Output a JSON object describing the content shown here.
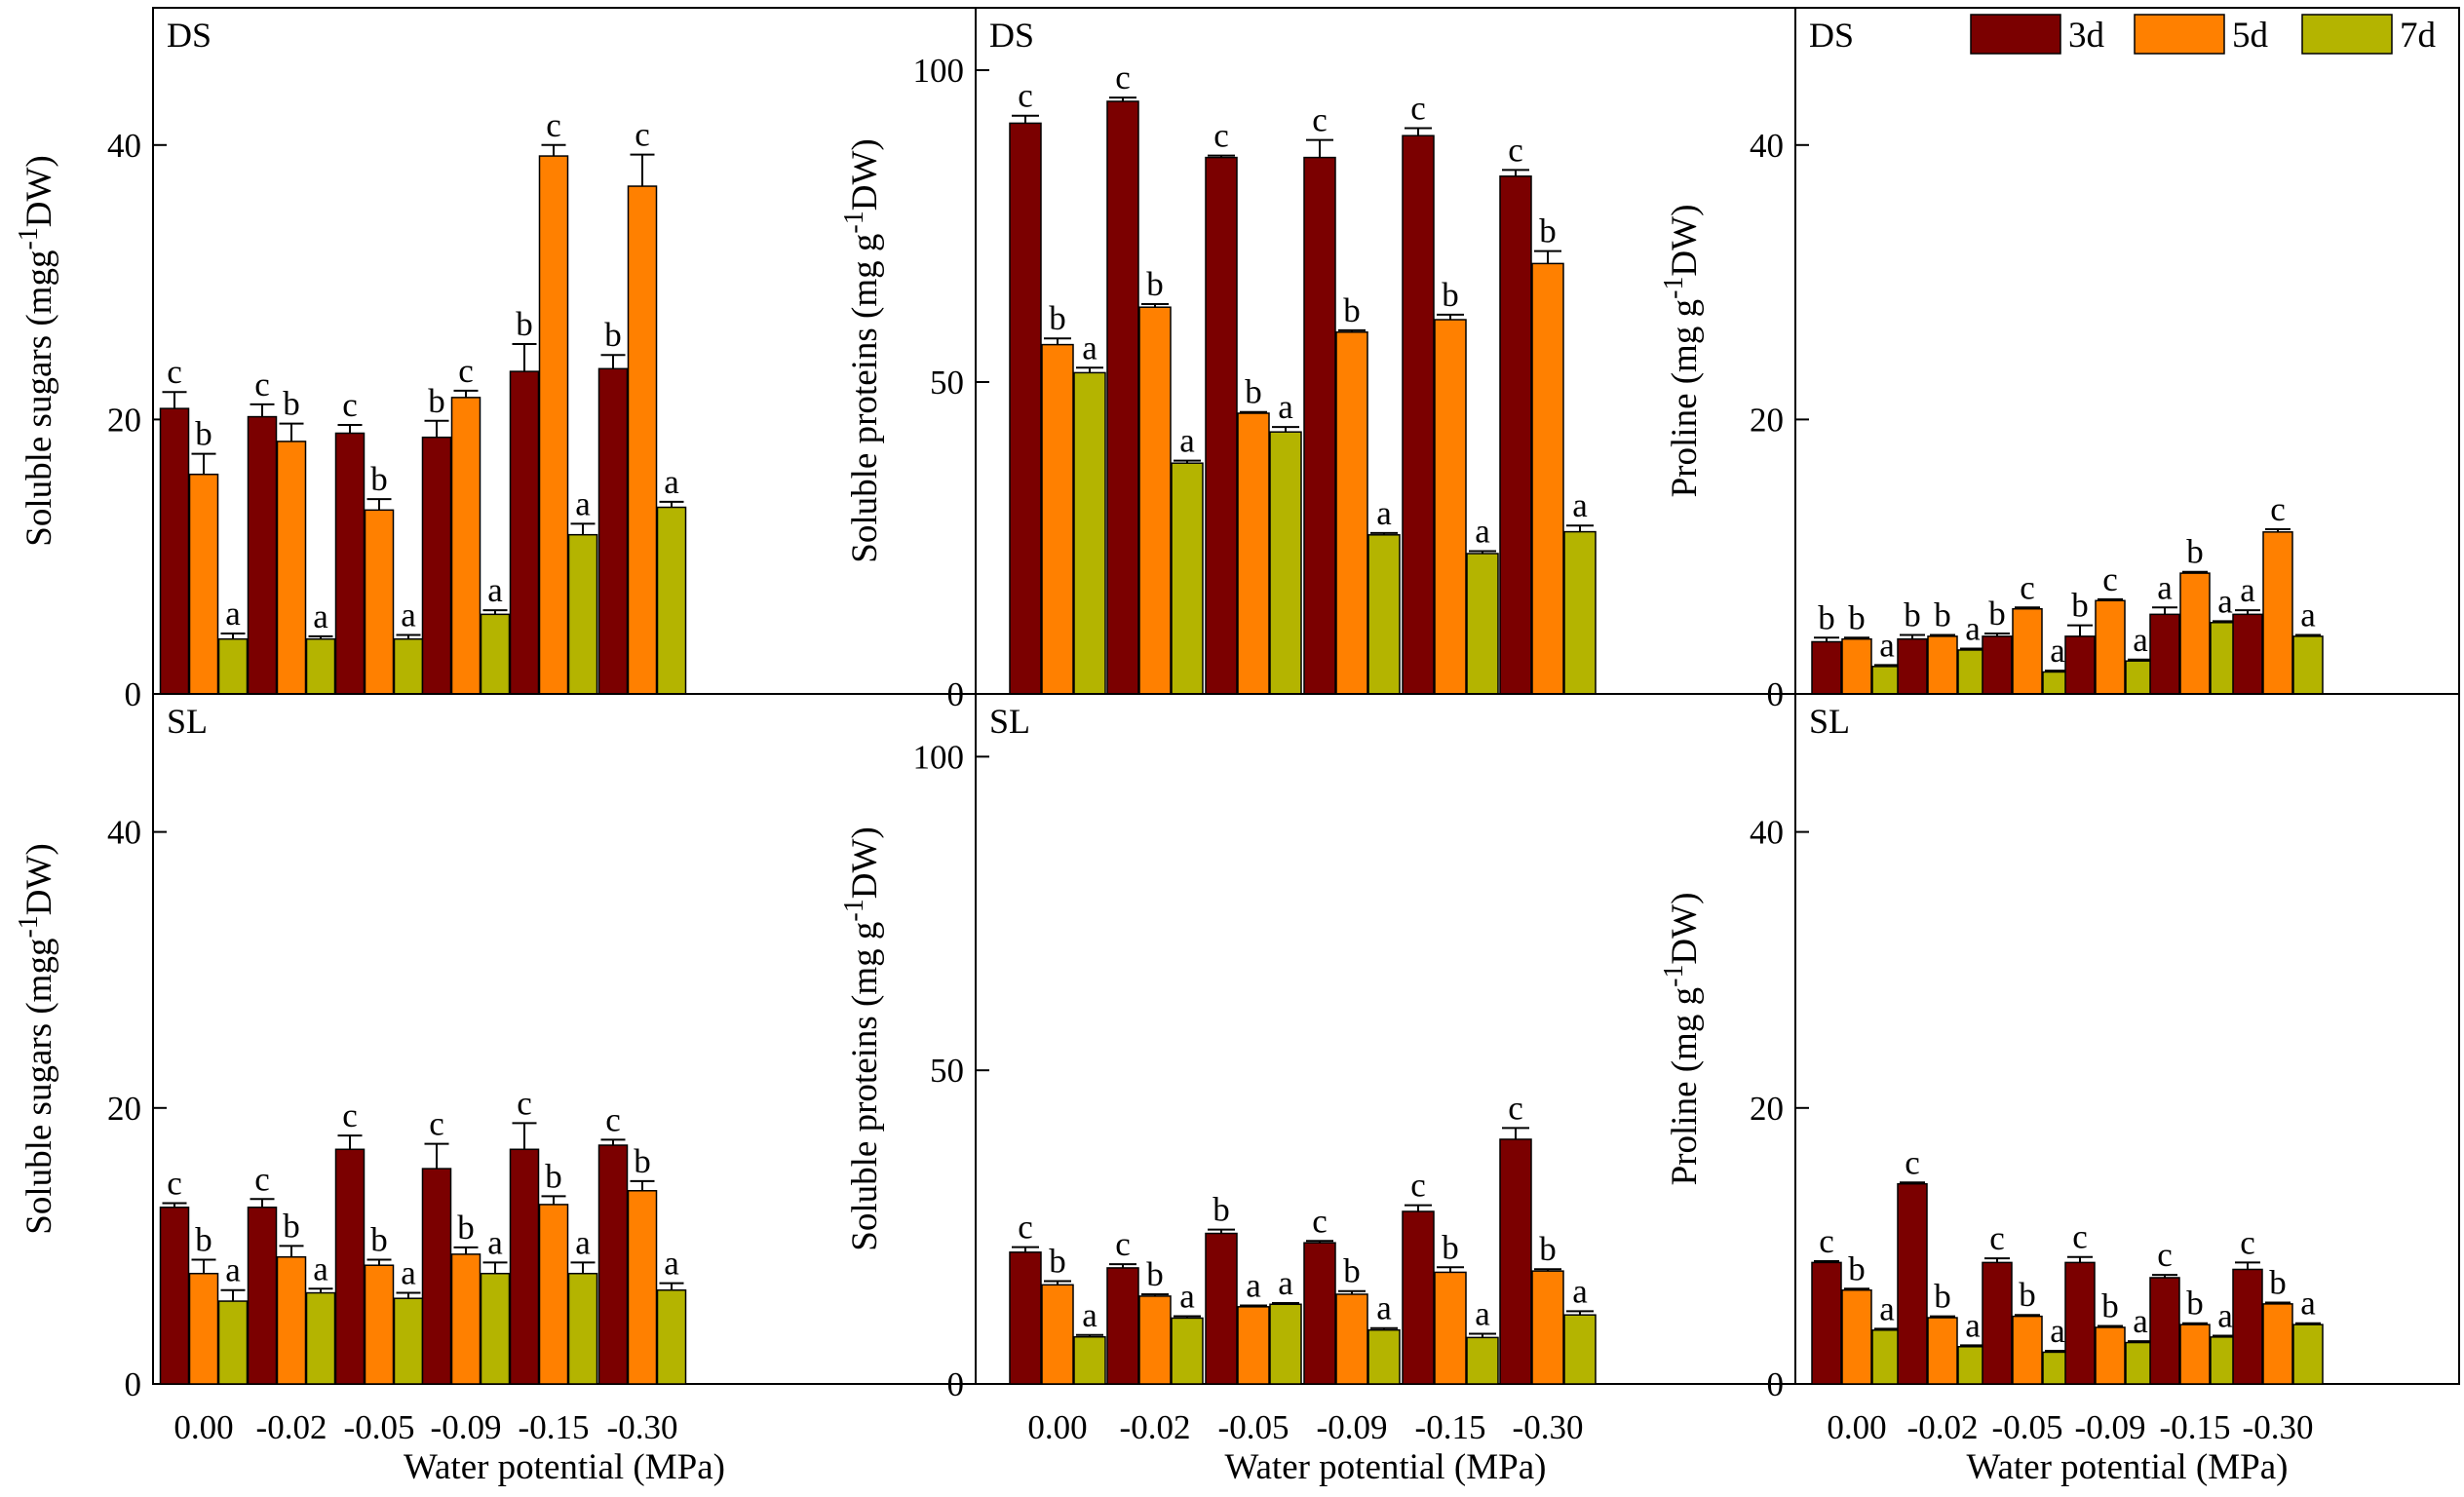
{
  "colors": {
    "3d": "#7b0000",
    "5d": "#ff8000",
    "7d": "#b4b400"
  },
  "legend": [
    {
      "key": "3d",
      "label": "3d"
    },
    {
      "key": "5d",
      "label": "5d"
    },
    {
      "key": "7d",
      "label": "7d"
    }
  ],
  "x_axis_title": "Water potential (MPa)",
  "chart_data": [
    {
      "type": "bar",
      "id": "ss-ds",
      "panel": "DS",
      "ylabel": "Soluble sugars (mgg-1DW)",
      "ylim": [
        0,
        50
      ],
      "yticks": [
        0,
        20,
        40
      ],
      "categories": [
        "0.00",
        "-0.02",
        "-0.05",
        "-0.09",
        "-0.15",
        "-0.30"
      ],
      "series": [
        {
          "name": "3d",
          "values": [
            20.8,
            20.2,
            19.0,
            18.7,
            23.5,
            23.7
          ],
          "errors": [
            1.2,
            0.9,
            0.6,
            1.2,
            2.0,
            1.0
          ],
          "labels": [
            "c",
            "c",
            "c",
            "b",
            "b",
            "b"
          ]
        },
        {
          "name": "5d",
          "values": [
            16.0,
            18.4,
            13.4,
            21.6,
            39.2,
            37.0
          ],
          "errors": [
            1.5,
            1.3,
            0.8,
            0.5,
            0.8,
            2.3
          ],
          "labels": [
            "b",
            "b",
            "b",
            "c",
            "c",
            "c"
          ]
        },
        {
          "name": "7d",
          "values": [
            4.0,
            4.0,
            4.0,
            5.8,
            11.6,
            13.6
          ],
          "errors": [
            0.4,
            0.2,
            0.3,
            0.3,
            0.8,
            0.4
          ],
          "labels": [
            "a",
            "a",
            "a",
            "a",
            "a",
            "a"
          ]
        }
      ]
    },
    {
      "type": "bar",
      "id": "sp-ds",
      "panel": "DS",
      "ylabel": "Soluble proteins (mg g-1DW)",
      "ylim": [
        0,
        110
      ],
      "yticks": [
        0,
        50,
        100
      ],
      "categories": [
        "0.00",
        "-0.02",
        "-0.05",
        "-0.09",
        "-0.15",
        "-0.30"
      ],
      "series": [
        {
          "name": "3d",
          "values": [
            91.5,
            95.0,
            86.0,
            86.0,
            89.5,
            83.0
          ],
          "errors": [
            1.2,
            0.6,
            0.3,
            2.8,
            1.2,
            1.0
          ],
          "labels": [
            "c",
            "c",
            "c",
            "c",
            "c",
            "c"
          ]
        },
        {
          "name": "5d",
          "values": [
            56.0,
            62.0,
            45.0,
            58.0,
            60.0,
            69.0
          ],
          "errors": [
            1.0,
            0.5,
            0.2,
            0.3,
            0.8,
            2.0
          ],
          "labels": [
            "b",
            "b",
            "b",
            "b",
            "b",
            "b"
          ]
        },
        {
          "name": "7d",
          "values": [
            51.5,
            37.0,
            42.0,
            25.5,
            22.5,
            26.0
          ],
          "errors": [
            0.8,
            0.4,
            0.8,
            0.3,
            0.4,
            1.0
          ],
          "labels": [
            "a",
            "a",
            "a",
            "a",
            "a",
            "a"
          ]
        }
      ]
    },
    {
      "type": "bar",
      "id": "pr-ds",
      "panel": "DS",
      "ylabel": "Proline (mg g-1DW)",
      "ylim": [
        0,
        50
      ],
      "yticks": [
        0,
        20,
        40
      ],
      "categories": [
        "0.00",
        "-0.02",
        "-0.05",
        "-0.09",
        "-0.15",
        "-0.30"
      ],
      "series": [
        {
          "name": "3d",
          "values": [
            3.8,
            4.0,
            4.2,
            4.2,
            5.8,
            5.8
          ],
          "errors": [
            0.3,
            0.3,
            0.2,
            0.8,
            0.5,
            0.3
          ],
          "labels": [
            "b",
            "b",
            "b",
            "b",
            "a",
            "a"
          ]
        },
        {
          "name": "5d",
          "values": [
            4.0,
            4.2,
            6.2,
            6.8,
            8.8,
            11.8
          ],
          "errors": [
            0.1,
            0.1,
            0.1,
            0.1,
            0.1,
            0.2
          ],
          "labels": [
            "b",
            "b",
            "c",
            "c",
            "b",
            "c"
          ]
        },
        {
          "name": "7d",
          "values": [
            2.0,
            3.2,
            1.6,
            2.4,
            5.2,
            4.2
          ],
          "errors": [
            0.1,
            0.1,
            0.1,
            0.1,
            0.1,
            0.1
          ],
          "labels": [
            "a",
            "a",
            "a",
            "a",
            "a",
            "a"
          ]
        }
      ]
    },
    {
      "type": "bar",
      "id": "ss-sl",
      "panel": "SL",
      "ylabel": "Soluble sugars (mgg-1DW)",
      "ylim": [
        0,
        50
      ],
      "yticks": [
        0,
        20,
        40
      ],
      "xlabel": "Water potential (MPa)",
      "categories": [
        "0.00",
        "-0.02",
        "-0.05",
        "-0.09",
        "-0.15",
        "-0.30"
      ],
      "series": [
        {
          "name": "3d",
          "values": [
            12.8,
            12.8,
            17.0,
            15.6,
            17.0,
            17.3
          ],
          "errors": [
            0.3,
            0.6,
            1.0,
            1.8,
            1.9,
            0.4
          ],
          "labels": [
            "c",
            "c",
            "c",
            "c",
            "c",
            "c"
          ]
        },
        {
          "name": "5d",
          "values": [
            8.0,
            9.2,
            8.6,
            9.4,
            13.0,
            14.0
          ],
          "errors": [
            1.0,
            0.8,
            0.4,
            0.5,
            0.6,
            0.7
          ],
          "labels": [
            "b",
            "b",
            "b",
            "b",
            "b",
            "b"
          ]
        },
        {
          "name": "7d",
          "values": [
            6.0,
            6.6,
            6.2,
            8.0,
            8.0,
            6.8
          ],
          "errors": [
            0.8,
            0.3,
            0.4,
            0.8,
            0.8,
            0.5
          ],
          "labels": [
            "a",
            "a",
            "a",
            "a",
            "a",
            "a"
          ]
        }
      ]
    },
    {
      "type": "bar",
      "id": "sp-sl",
      "panel": "SL",
      "ylabel": "Soluble proteins (mg g-1DW)",
      "ylim": [
        0,
        110
      ],
      "yticks": [
        0,
        50,
        100
      ],
      "xlabel": "Water potential (MPa)",
      "categories": [
        "0.00",
        "-0.02",
        "-0.05",
        "-0.09",
        "-0.15",
        "-0.30"
      ],
      "series": [
        {
          "name": "3d",
          "values": [
            21.0,
            18.5,
            24.0,
            22.5,
            27.5,
            39.0
          ],
          "errors": [
            0.8,
            0.6,
            0.6,
            0.3,
            1.0,
            1.8
          ],
          "labels": [
            "c",
            "c",
            "b",
            "c",
            "c",
            "c"
          ]
        },
        {
          "name": "5d",
          "values": [
            15.8,
            14.0,
            12.3,
            14.3,
            17.8,
            18.0
          ],
          "errors": [
            0.6,
            0.3,
            0.2,
            0.5,
            0.8,
            0.3
          ],
          "labels": [
            "b",
            "b",
            "a",
            "b",
            "b",
            "b"
          ]
        },
        {
          "name": "7d",
          "values": [
            7.5,
            10.5,
            12.7,
            8.6,
            7.4,
            11.0
          ],
          "errors": [
            0.3,
            0.3,
            0.2,
            0.3,
            0.6,
            0.6
          ],
          "labels": [
            "a",
            "a",
            "a",
            "a",
            "a",
            "a"
          ]
        }
      ]
    },
    {
      "type": "bar",
      "id": "pr-sl",
      "panel": "SL",
      "ylabel": "Proline (mg g-1DW)",
      "ylim": [
        0,
        50
      ],
      "yticks": [
        0,
        20,
        40
      ],
      "xlabel": "Water potential (MPa)",
      "categories": [
        "0.00",
        "-0.02",
        "-0.05",
        "-0.09",
        "-0.15",
        "-0.30"
      ],
      "series": [
        {
          "name": "3d",
          "values": [
            8.8,
            14.5,
            8.8,
            8.8,
            7.7,
            8.3
          ],
          "errors": [
            0.1,
            0.1,
            0.3,
            0.4,
            0.2,
            0.5
          ],
          "labels": [
            "c",
            "c",
            "c",
            "c",
            "c",
            "c"
          ]
        },
        {
          "name": "5d",
          "values": [
            6.8,
            4.8,
            4.9,
            4.1,
            4.3,
            5.8
          ],
          "errors": [
            0.1,
            0.1,
            0.1,
            0.1,
            0.1,
            0.1
          ],
          "labels": [
            "b",
            "b",
            "b",
            "b",
            "b",
            "b"
          ]
        },
        {
          "name": "7d",
          "values": [
            3.9,
            2.7,
            2.3,
            3.0,
            3.4,
            4.3
          ],
          "errors": [
            0.1,
            0.1,
            0.1,
            0.1,
            0.1,
            0.1
          ],
          "labels": [
            "a",
            "a",
            "a",
            "a",
            "a",
            "a"
          ]
        }
      ]
    }
  ]
}
